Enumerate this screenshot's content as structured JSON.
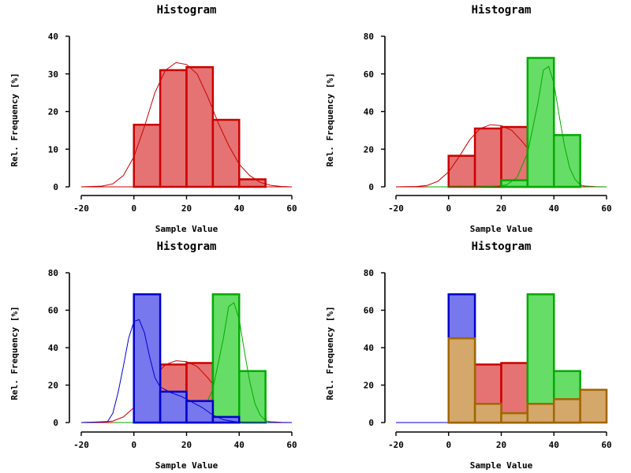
{
  "chart_data": [
    {
      "type": "bar",
      "title": "Histogram",
      "xlabel": "Sample Value",
      "ylabel": "Rel. Frequency [%]",
      "xlim": [
        -20,
        60
      ],
      "ylim": [
        0,
        40
      ],
      "xticks": [
        -20,
        0,
        20,
        40,
        60
      ],
      "yticks": [
        0,
        10,
        20,
        30,
        40
      ],
      "series": [
        {
          "color": "#cc0000",
          "fill": "#e57373",
          "bins": [
            [
              0,
              10,
              16.5
            ],
            [
              10,
              20,
              31
            ],
            [
              20,
              30,
              31.8
            ],
            [
              30,
              40,
              17.8
            ],
            [
              40,
              50,
              2
            ]
          ],
          "density": [
            [
              -20,
              0
            ],
            [
              -12,
              0.2
            ],
            [
              -8,
              0.8
            ],
            [
              -4,
              3
            ],
            [
              0,
              8
            ],
            [
              4,
              16
            ],
            [
              8,
              25
            ],
            [
              12,
              31
            ],
            [
              16,
              33
            ],
            [
              20,
              32.5
            ],
            [
              24,
              30
            ],
            [
              28,
              24
            ],
            [
              32,
              17
            ],
            [
              36,
              11
            ],
            [
              40,
              6
            ],
            [
              44,
              3
            ],
            [
              48,
              1.2
            ],
            [
              52,
              0.4
            ],
            [
              56,
              0.1
            ],
            [
              60,
              0
            ]
          ]
        }
      ]
    },
    {
      "type": "bar",
      "title": "Histogram",
      "xlabel": "Sample Value",
      "ylabel": "Rel. Frequency [%]",
      "xlim": [
        -20,
        60
      ],
      "ylim": [
        0,
        80
      ],
      "xticks": [
        -20,
        0,
        20,
        40,
        60
      ],
      "yticks": [
        0,
        20,
        40,
        60,
        80
      ],
      "series": [
        {
          "color": "#cc0000",
          "fill": "#e57373",
          "bins": [
            [
              0,
              10,
              16.5
            ],
            [
              10,
              20,
              31
            ],
            [
              20,
              30,
              31.8
            ],
            [
              30,
              40,
              17.8
            ],
            [
              40,
              50,
              2
            ]
          ],
          "density": [
            [
              -20,
              0
            ],
            [
              -12,
              0.2
            ],
            [
              -8,
              0.8
            ],
            [
              -4,
              3
            ],
            [
              0,
              8
            ],
            [
              4,
              16
            ],
            [
              8,
              25
            ],
            [
              12,
              31
            ],
            [
              16,
              33
            ],
            [
              20,
              32.5
            ],
            [
              24,
              30
            ],
            [
              28,
              24
            ],
            [
              32,
              17
            ],
            [
              36,
              11
            ],
            [
              40,
              6
            ],
            [
              44,
              3
            ],
            [
              48,
              1.2
            ],
            [
              52,
              0.4
            ],
            [
              56,
              0.1
            ],
            [
              60,
              0
            ]
          ]
        },
        {
          "color": "#00aa00",
          "fill": "#66dd66",
          "bins": [
            [
              20,
              30,
              3.5
            ],
            [
              30,
              40,
              68.5
            ],
            [
              40,
              50,
              27.5
            ]
          ],
          "density": [
            [
              -8,
              0
            ],
            [
              10,
              0
            ],
            [
              18,
              0.3
            ],
            [
              22,
              1
            ],
            [
              26,
              5
            ],
            [
              30,
              18
            ],
            [
              34,
              45
            ],
            [
              36,
              62
            ],
            [
              38,
              64
            ],
            [
              40,
              55
            ],
            [
              42,
              38
            ],
            [
              44,
              22
            ],
            [
              46,
              10
            ],
            [
              48,
              4
            ],
            [
              50,
              1
            ],
            [
              52,
              0.2
            ],
            [
              54,
              0
            ],
            [
              60,
              0
            ]
          ]
        }
      ]
    },
    {
      "type": "bar",
      "title": "Histogram",
      "xlabel": "Sample Value",
      "ylabel": "Rel. Frequency [%]",
      "xlim": [
        -20,
        60
      ],
      "ylim": [
        0,
        80
      ],
      "xticks": [
        -20,
        0,
        20,
        40,
        60
      ],
      "yticks": [
        0,
        20,
        40,
        60,
        80
      ],
      "series": [
        {
          "color": "#cc0000",
          "fill": "#e57373",
          "bins": [
            [
              0,
              10,
              16.5
            ],
            [
              10,
              20,
              31
            ],
            [
              20,
              30,
              31.8
            ],
            [
              30,
              40,
              17.8
            ],
            [
              40,
              50,
              2
            ]
          ],
          "density": [
            [
              -20,
              0
            ],
            [
              -12,
              0.2
            ],
            [
              -8,
              0.8
            ],
            [
              -4,
              3
            ],
            [
              0,
              8
            ],
            [
              4,
              16
            ],
            [
              8,
              25
            ],
            [
              12,
              31
            ],
            [
              16,
              33
            ],
            [
              20,
              32.5
            ],
            [
              24,
              30
            ],
            [
              28,
              24
            ],
            [
              32,
              17
            ],
            [
              36,
              11
            ],
            [
              40,
              6
            ],
            [
              44,
              3
            ],
            [
              48,
              1.2
            ],
            [
              52,
              0.4
            ],
            [
              56,
              0.1
            ],
            [
              60,
              0
            ]
          ]
        },
        {
          "color": "#00aa00",
          "fill": "#66dd66",
          "bins": [
            [
              20,
              30,
              3.5
            ],
            [
              30,
              40,
              68.5
            ],
            [
              40,
              50,
              27.5
            ]
          ],
          "density": [
            [
              -8,
              0
            ],
            [
              10,
              0
            ],
            [
              18,
              0.3
            ],
            [
              22,
              1
            ],
            [
              26,
              5
            ],
            [
              30,
              18
            ],
            [
              34,
              45
            ],
            [
              36,
              62
            ],
            [
              38,
              64
            ],
            [
              40,
              55
            ],
            [
              42,
              38
            ],
            [
              44,
              22
            ],
            [
              46,
              10
            ],
            [
              48,
              4
            ],
            [
              50,
              1
            ],
            [
              52,
              0.2
            ],
            [
              54,
              0
            ],
            [
              60,
              0
            ]
          ]
        },
        {
          "color": "#0000cc",
          "fill": "#7777ee",
          "bins": [
            [
              0,
              10,
              68.5
            ],
            [
              10,
              20,
              16.5
            ],
            [
              20,
              30,
              11.5
            ],
            [
              30,
              40,
              3
            ]
          ],
          "density": [
            [
              -20,
              0
            ],
            [
              -10,
              0.5
            ],
            [
              -8,
              5
            ],
            [
              -6,
              16
            ],
            [
              -4,
              30
            ],
            [
              -2,
              45
            ],
            [
              0,
              54
            ],
            [
              2,
              55
            ],
            [
              4,
              48
            ],
            [
              6,
              35
            ],
            [
              8,
              24
            ],
            [
              10,
              19
            ],
            [
              14,
              16
            ],
            [
              18,
              14
            ],
            [
              22,
              11
            ],
            [
              26,
              8
            ],
            [
              30,
              4
            ],
            [
              34,
              1.5
            ],
            [
              38,
              0.5
            ],
            [
              42,
              0
            ],
            [
              60,
              0
            ]
          ]
        }
      ]
    },
    {
      "type": "bar",
      "title": "Histogram",
      "xlabel": "Sample Value",
      "ylabel": "Rel. Frequency [%]",
      "xlim": [
        -20,
        60
      ],
      "ylim": [
        0,
        80
      ],
      "xticks": [
        -20,
        0,
        20,
        40,
        60
      ],
      "yticks": [
        0,
        20,
        40,
        60,
        80
      ],
      "series": [
        {
          "color": "#0000cc",
          "fill": "#7777ee",
          "bins": [
            [
              0,
              10,
              68.5
            ],
            [
              10,
              20,
              16.5
            ],
            [
              20,
              30,
              11.5
            ],
            [
              30,
              40,
              3
            ]
          ],
          "density": []
        },
        {
          "color": "#cc0000",
          "fill": "#e57373",
          "bins": [
            [
              0,
              10,
              16.5
            ],
            [
              10,
              20,
              31
            ],
            [
              20,
              30,
              31.8
            ],
            [
              30,
              40,
              17.8
            ],
            [
              40,
              50,
              2
            ]
          ],
          "density": []
        },
        {
          "color": "#00aa00",
          "fill": "#66dd66",
          "bins": [
            [
              20,
              30,
              3.5
            ],
            [
              30,
              40,
              68.5
            ],
            [
              40,
              50,
              27.5
            ]
          ],
          "density": []
        },
        {
          "color": "#a06600",
          "fill": "#d4a86a",
          "bins": [
            [
              0,
              10,
              45
            ],
            [
              10,
              20,
              10
            ],
            [
              20,
              30,
              5
            ],
            [
              30,
              40,
              10
            ],
            [
              40,
              50,
              12.5
            ],
            [
              50,
              60,
              17.5
            ]
          ],
          "density": []
        }
      ]
    }
  ]
}
